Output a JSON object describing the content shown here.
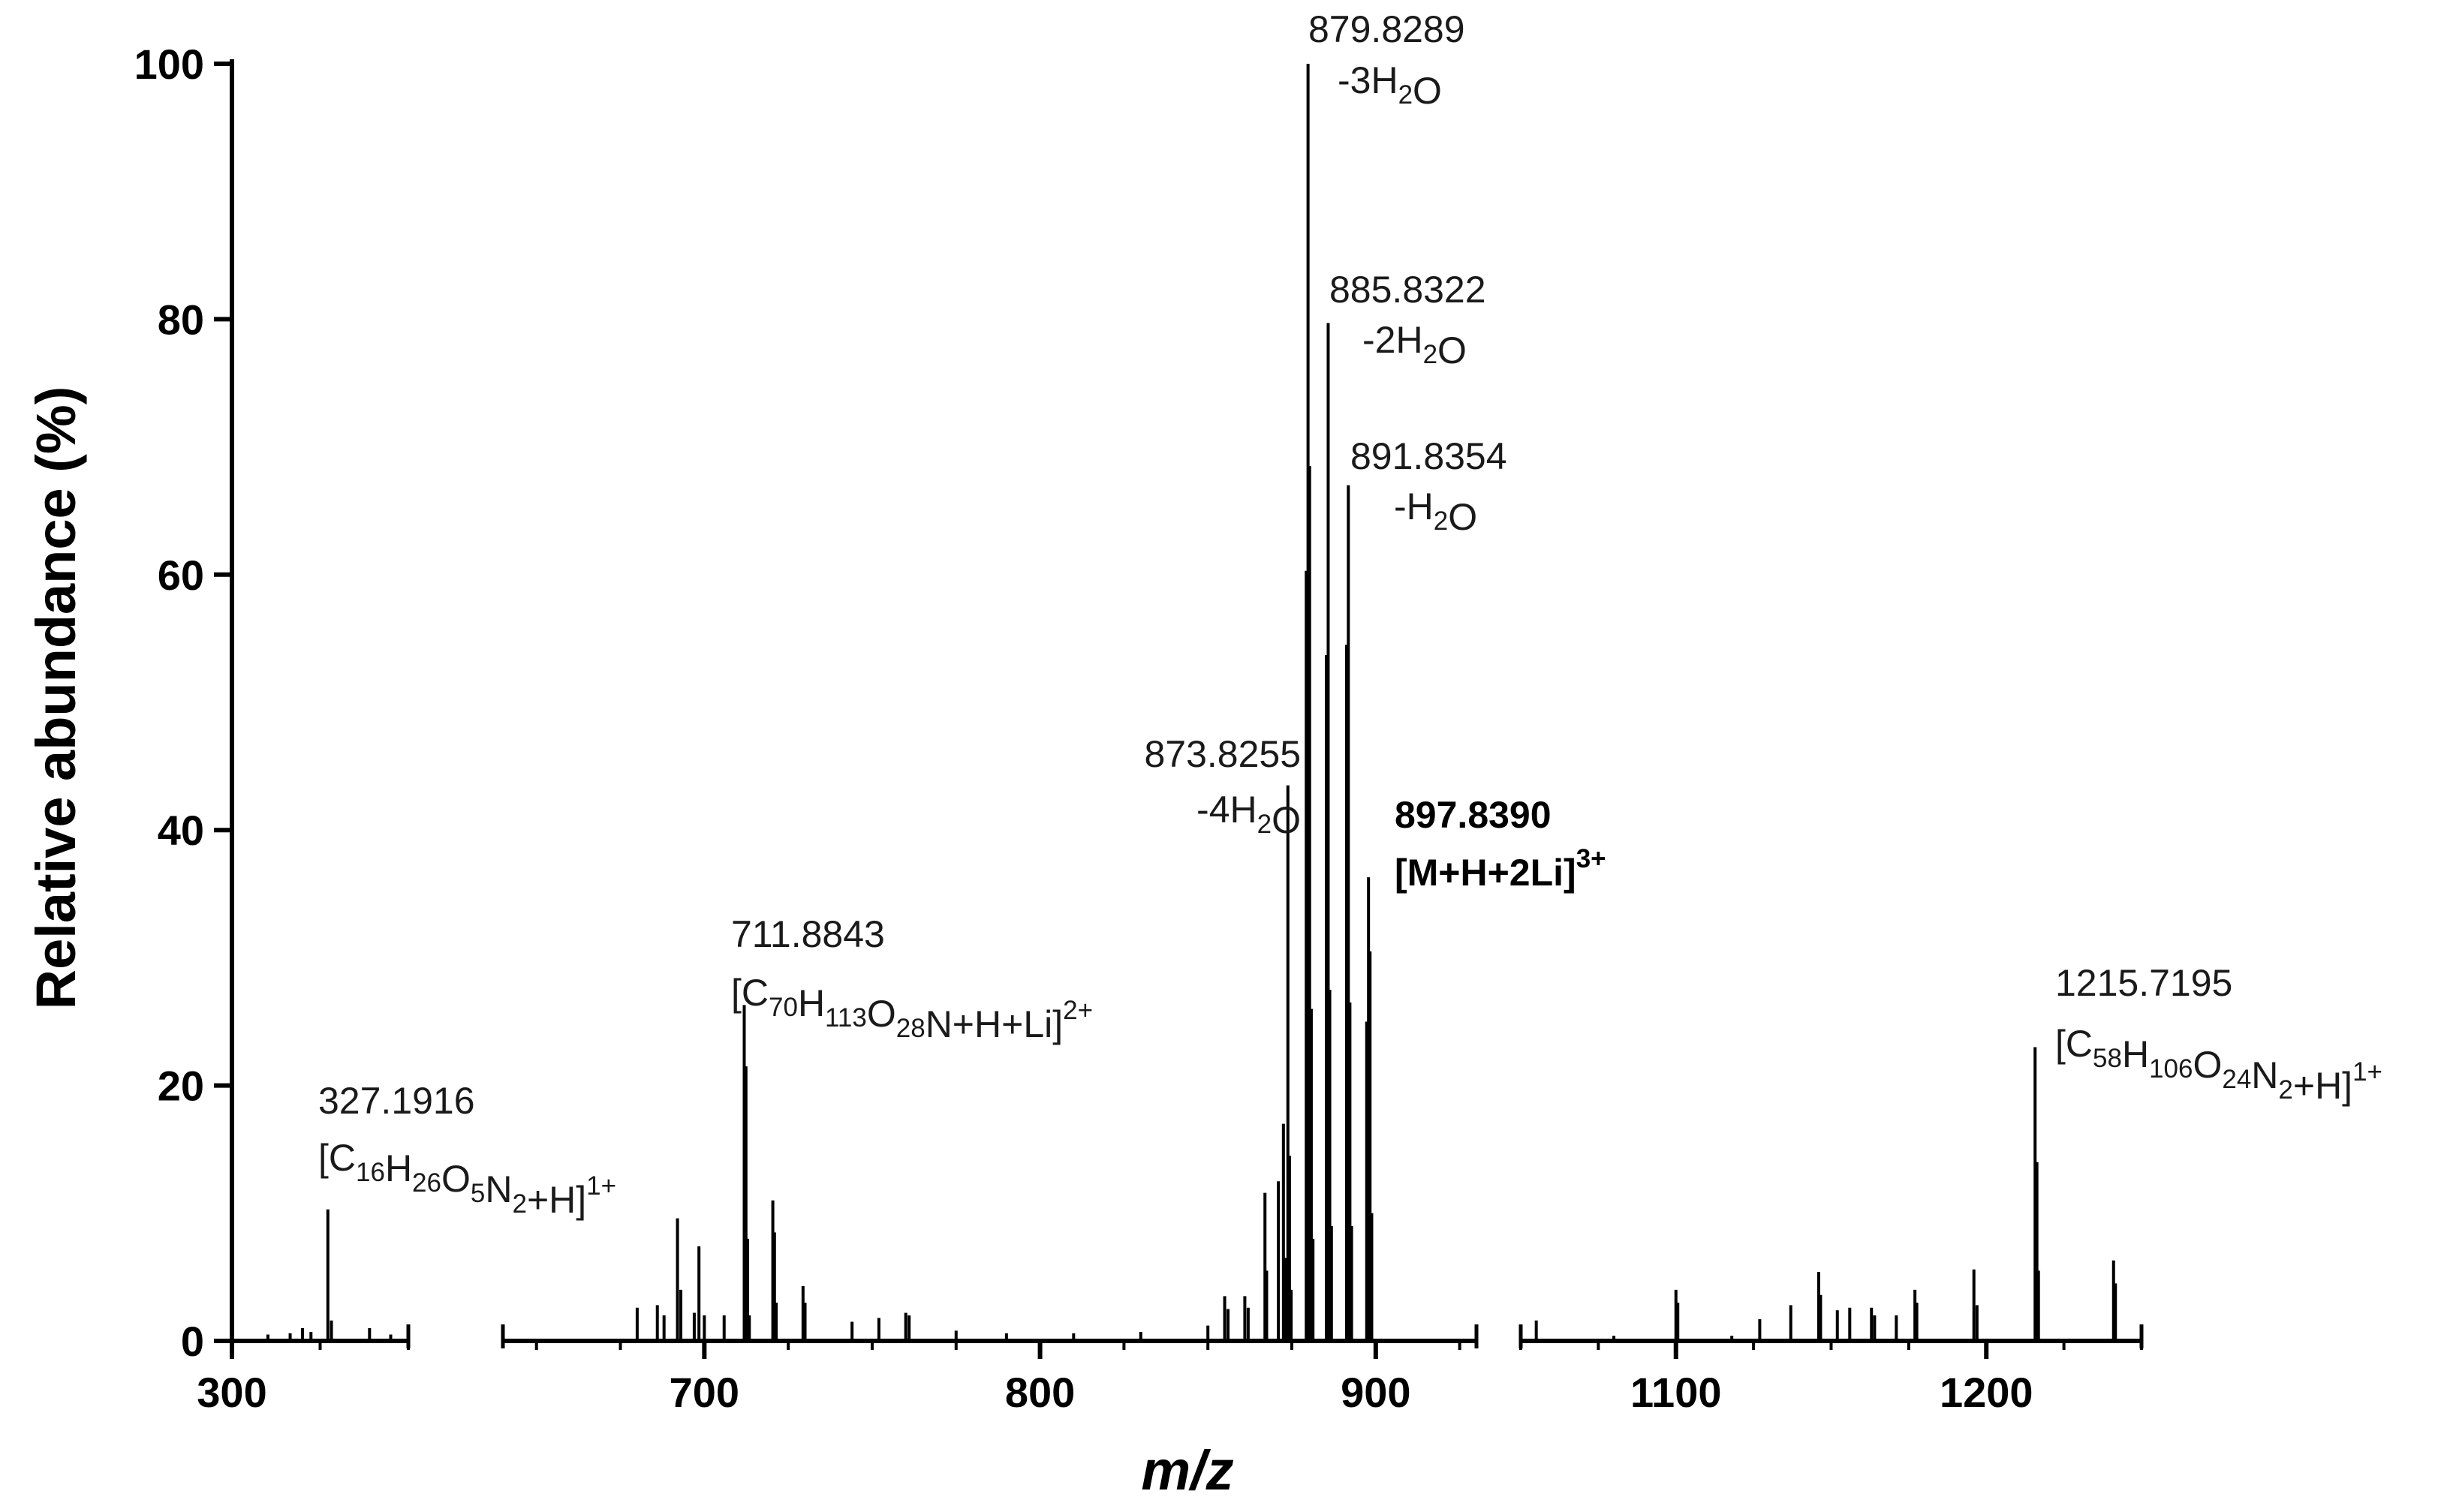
{
  "chart_data": {
    "type": "bar",
    "title": "",
    "xlabel": "m/z",
    "ylabel": "Relative abundance (%)",
    "ylim": [
      0,
      100
    ],
    "y_ticks": [
      "0",
      "20",
      "40",
      "60",
      "80",
      "100"
    ],
    "grid": false,
    "x_segments": [
      {
        "range": [
          300,
          350
        ],
        "ticks": [
          "300"
        ]
      },
      {
        "range": [
          640,
          930
        ],
        "ticks": [
          "700",
          "800",
          "900"
        ]
      },
      {
        "range": [
          1050,
          1250
        ],
        "ticks": [
          "1100",
          "1200"
        ]
      }
    ],
    "peaks": [
      {
        "mz": 310.2,
        "rel": 0.5
      },
      {
        "mz": 316.5,
        "rel": 0.6
      },
      {
        "mz": 320.0,
        "rel": 1.0
      },
      {
        "mz": 322.4,
        "rel": 0.7
      },
      {
        "mz": 327.1916,
        "rel": 10.3
      },
      {
        "mz": 328.2,
        "rel": 1.6
      },
      {
        "mz": 339.0,
        "rel": 1.0
      },
      {
        "mz": 345.0,
        "rel": 0.5
      },
      {
        "mz": 680.0,
        "rel": 2.6
      },
      {
        "mz": 686.0,
        "rel": 2.8
      },
      {
        "mz": 688.0,
        "rel": 2.0
      },
      {
        "mz": 692.0,
        "rel": 9.6
      },
      {
        "mz": 693.0,
        "rel": 4.0
      },
      {
        "mz": 697.0,
        "rel": 2.2
      },
      {
        "mz": 698.4,
        "rel": 7.4
      },
      {
        "mz": 700.0,
        "rel": 2.0
      },
      {
        "mz": 705.9,
        "rel": 2.0
      },
      {
        "mz": 711.8843,
        "rel": 26.3
      },
      {
        "mz": 712.4,
        "rel": 21.5
      },
      {
        "mz": 712.9,
        "rel": 8.0
      },
      {
        "mz": 713.4,
        "rel": 2.0
      },
      {
        "mz": 720.4,
        "rel": 11.0
      },
      {
        "mz": 720.9,
        "rel": 8.5
      },
      {
        "mz": 721.4,
        "rel": 3.0
      },
      {
        "mz": 729.4,
        "rel": 4.3
      },
      {
        "mz": 730.0,
        "rel": 3.0
      },
      {
        "mz": 744.0,
        "rel": 1.5
      },
      {
        "mz": 752.0,
        "rel": 1.8
      },
      {
        "mz": 760.0,
        "rel": 2.2
      },
      {
        "mz": 761.0,
        "rel": 2.0
      },
      {
        "mz": 775.0,
        "rel": 0.8
      },
      {
        "mz": 790.0,
        "rel": 0.6
      },
      {
        "mz": 810.0,
        "rel": 0.6
      },
      {
        "mz": 830.0,
        "rel": 0.7
      },
      {
        "mz": 850.0,
        "rel": 1.2
      },
      {
        "mz": 855.0,
        "rel": 3.5
      },
      {
        "mz": 856.0,
        "rel": 2.5
      },
      {
        "mz": 861.0,
        "rel": 3.5
      },
      {
        "mz": 862.0,
        "rel": 2.6
      },
      {
        "mz": 867.0,
        "rel": 11.6
      },
      {
        "mz": 867.5,
        "rel": 5.5
      },
      {
        "mz": 871.0,
        "rel": 12.5
      },
      {
        "mz": 872.5,
        "rel": 17.0
      },
      {
        "mz": 873.0,
        "rel": 6.5
      },
      {
        "mz": 873.8255,
        "rel": 43.5
      },
      {
        "mz": 874.3,
        "rel": 14.5
      },
      {
        "mz": 874.8,
        "rel": 4.0
      },
      {
        "mz": 879.3,
        "rel": 60.3
      },
      {
        "mz": 879.8289,
        "rel": 100
      },
      {
        "mz": 880.3,
        "rel": 68.5
      },
      {
        "mz": 880.8,
        "rel": 26.0
      },
      {
        "mz": 881.3,
        "rel": 8.0
      },
      {
        "mz": 885.3,
        "rel": 53.7
      },
      {
        "mz": 885.8322,
        "rel": 79.7
      },
      {
        "mz": 886.3,
        "rel": 27.5
      },
      {
        "mz": 886.8,
        "rel": 9.0
      },
      {
        "mz": 891.3,
        "rel": 54.5
      },
      {
        "mz": 891.8354,
        "rel": 67.0
      },
      {
        "mz": 892.3,
        "rel": 26.5
      },
      {
        "mz": 892.8,
        "rel": 9.0
      },
      {
        "mz": 897.3,
        "rel": 25.0
      },
      {
        "mz": 897.839,
        "rel": 36.3
      },
      {
        "mz": 898.3,
        "rel": 30.5
      },
      {
        "mz": 898.8,
        "rel": 10.0
      },
      {
        "mz": 1055.0,
        "rel": 1.6
      },
      {
        "mz": 1080.0,
        "rel": 0.4
      },
      {
        "mz": 1100.0,
        "rel": 4.0
      },
      {
        "mz": 1100.6,
        "rel": 3.0
      },
      {
        "mz": 1118.0,
        "rel": 0.4
      },
      {
        "mz": 1127.0,
        "rel": 1.7
      },
      {
        "mz": 1137.0,
        "rel": 2.8
      },
      {
        "mz": 1146.0,
        "rel": 5.4
      },
      {
        "mz": 1146.6,
        "rel": 3.6
      },
      {
        "mz": 1152.0,
        "rel": 2.4
      },
      {
        "mz": 1156.0,
        "rel": 2.6
      },
      {
        "mz": 1163.0,
        "rel": 2.6
      },
      {
        "mz": 1164.0,
        "rel": 2.0
      },
      {
        "mz": 1171.0,
        "rel": 2.0
      },
      {
        "mz": 1177.0,
        "rel": 4.0
      },
      {
        "mz": 1177.6,
        "rel": 3.0
      },
      {
        "mz": 1196.0,
        "rel": 5.6
      },
      {
        "mz": 1197.0,
        "rel": 2.8
      },
      {
        "mz": 1215.7195,
        "rel": 23.0
      },
      {
        "mz": 1216.3,
        "rel": 14.0
      },
      {
        "mz": 1216.8,
        "rel": 5.5
      },
      {
        "mz": 1241.0,
        "rel": 6.3
      },
      {
        "mz": 1241.6,
        "rel": 4.5
      }
    ],
    "annotations": [
      {
        "mz_label": "327.1916",
        "ion": "[C16H26O5N2+H]1+",
        "ion_parts": [
          {
            "t": "[C"
          },
          {
            "t": "16",
            "s": "sub"
          },
          {
            "t": "H"
          },
          {
            "t": "26",
            "s": "sub"
          },
          {
            "t": "O"
          },
          {
            "t": "5",
            "s": "sub"
          },
          {
            "t": "N"
          },
          {
            "t": "2",
            "s": "sub"
          },
          {
            "t": "+H]"
          },
          {
            "t": "1+",
            "s": "sup"
          }
        ]
      },
      {
        "mz_label": "711.8843",
        "ion": "[C70H113O28N+H+Li]2+",
        "ion_parts": [
          {
            "t": "[C"
          },
          {
            "t": "70",
            "s": "sub"
          },
          {
            "t": "H"
          },
          {
            "t": "113",
            "s": "sub"
          },
          {
            "t": "O"
          },
          {
            "t": "28",
            "s": "sub"
          },
          {
            "t": "N+H+Li]"
          },
          {
            "t": "2+",
            "s": "sup"
          }
        ]
      },
      {
        "mz_label": "873.8255",
        "ion": "-4H2O",
        "ion_parts": [
          {
            "t": "-4H"
          },
          {
            "t": "2",
            "s": "sub"
          },
          {
            "t": "O"
          }
        ]
      },
      {
        "mz_label": "879.8289",
        "ion": "-3H2O",
        "ion_parts": [
          {
            "t": "-3H"
          },
          {
            "t": "2",
            "s": "sub"
          },
          {
            "t": "O"
          }
        ]
      },
      {
        "mz_label": "885.8322",
        "ion": "-2H2O",
        "ion_parts": [
          {
            "t": "-2H"
          },
          {
            "t": "2",
            "s": "sub"
          },
          {
            "t": "O"
          }
        ]
      },
      {
        "mz_label": "891.8354",
        "ion": "-H2O",
        "ion_parts": [
          {
            "t": "-H"
          },
          {
            "t": "2",
            "s": "sub"
          },
          {
            "t": "O"
          }
        ]
      },
      {
        "mz_label": "897.8390",
        "ion": "[M+H+2Li]3+",
        "bold": true,
        "ion_parts": [
          {
            "t": "[M+H+2Li]"
          },
          {
            "t": "3+",
            "s": "sup"
          }
        ]
      },
      {
        "mz_label": "1215.7195",
        "ion": "[C58H106O24N2+H]1+",
        "ion_parts": [
          {
            "t": "[C"
          },
          {
            "t": "58",
            "s": "sub"
          },
          {
            "t": "H"
          },
          {
            "t": "106",
            "s": "sub"
          },
          {
            "t": "O"
          },
          {
            "t": "24",
            "s": "sub"
          },
          {
            "t": "N"
          },
          {
            "t": "2",
            "s": "sub"
          },
          {
            "t": "+H]"
          },
          {
            "t": "1+",
            "s": "sup"
          }
        ]
      }
    ]
  }
}
